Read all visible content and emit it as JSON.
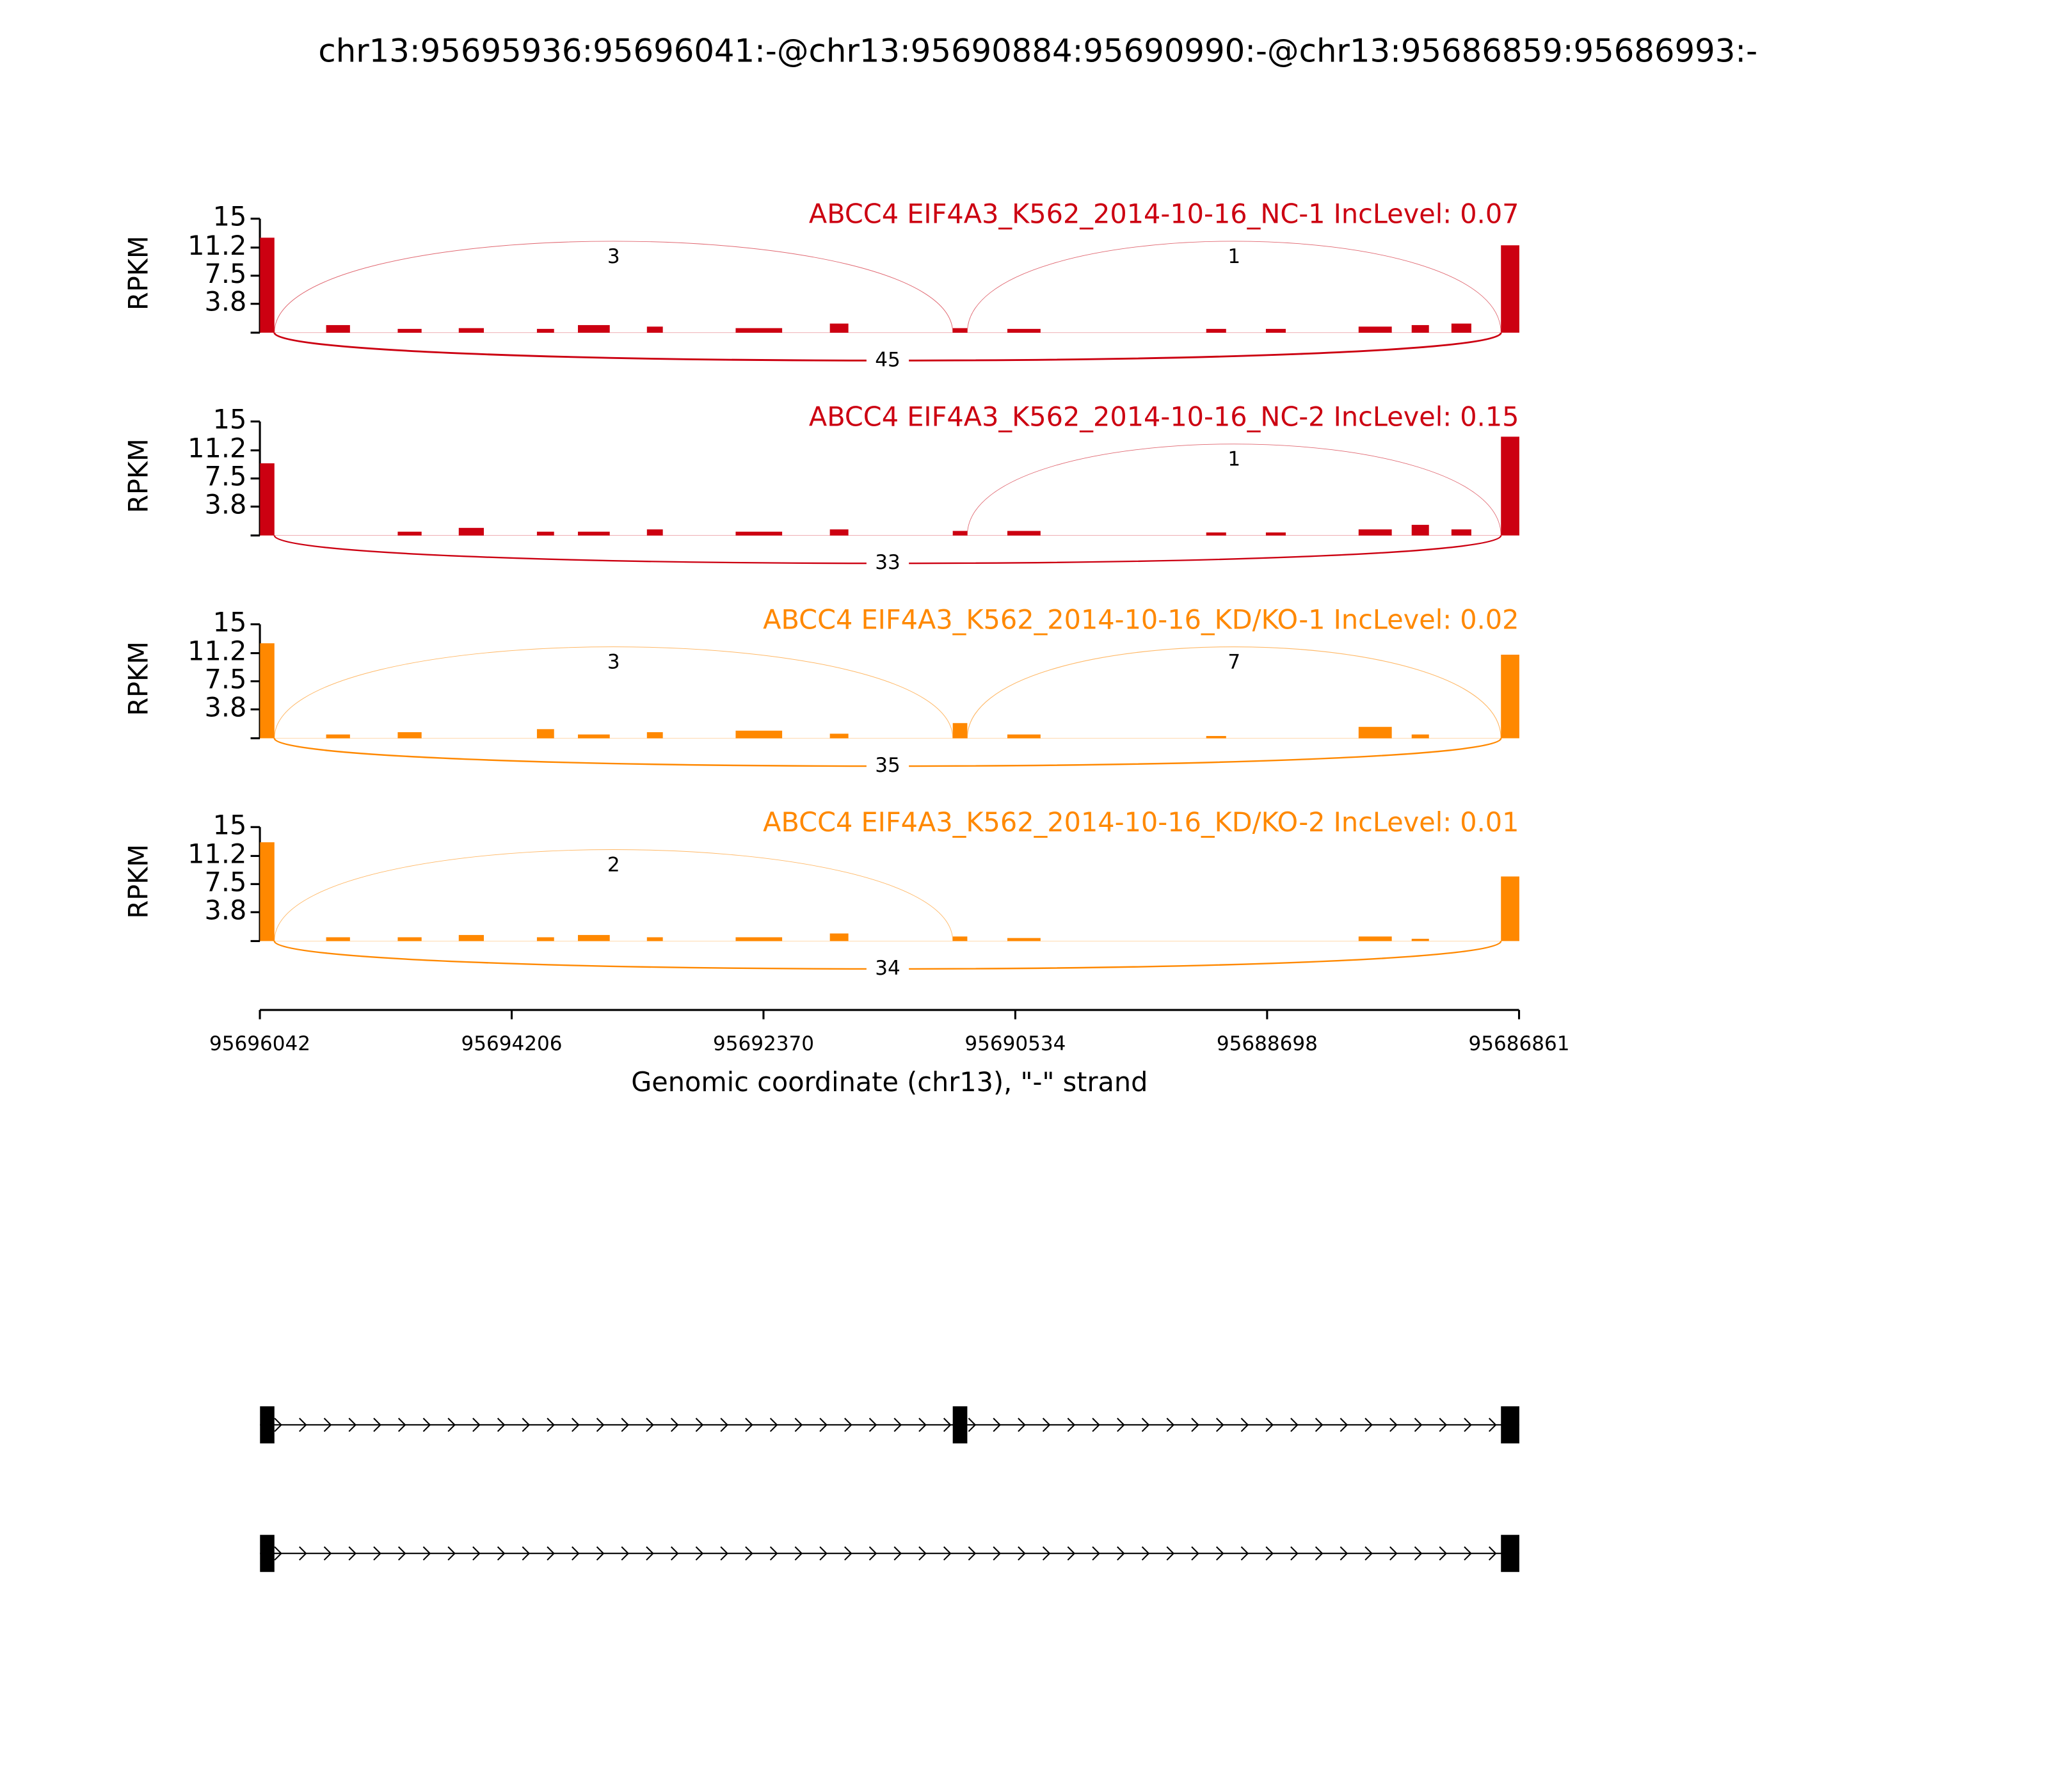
{
  "chart_data": {
    "type": "sashimi",
    "title": "chr13:95695936:95696041:-@chr13:95690884:95690990:-@chr13:95686859:95686993:-",
    "ylabel": "RPKM",
    "ylim": [
      0,
      15
    ],
    "yticks": [
      3.8,
      7.5,
      11.2,
      15
    ],
    "xlim": [
      95696042,
      95686861
    ],
    "xticks": [
      95696042,
      95694206,
      95692370,
      95690534,
      95688698,
      95686861
    ],
    "xlabel": "Genomic coordinate (chr13), \"-\" strand",
    "panels": [
      {
        "label": "ABCC4 EIF4A3_K562_2014-10-16_NC-1 IncLevel: 0.07",
        "color": "#cc0011",
        "coverage": {
          "starts": [
            95696041,
            95695559,
            95695037,
            95694592,
            95694022,
            95693723,
            95693220,
            95692573,
            95691886,
            95690990,
            95690592,
            95689142,
            95688707,
            95688031,
            95687644,
            95687354,
            95686993
          ],
          "ends": [
            95695936,
            95695385,
            95694863,
            95694409,
            95693897,
            95693491,
            95693104,
            95692234,
            95691751,
            95690884,
            95690350,
            95688997,
            95688562,
            95687789,
            95687518,
            95687209,
            95686859
          ],
          "values": [
            12.5,
            1.0,
            0.5,
            0.6,
            0.5,
            1.0,
            0.8,
            0.6,
            1.2,
            0.6,
            0.5,
            0.5,
            0.5,
            0.8,
            1.0,
            1.2,
            11.5
          ]
        },
        "junctions": [
          {
            "from": 95695936,
            "to": 95690990,
            "count": 3,
            "side": "above"
          },
          {
            "from": 95690884,
            "to": 95686993,
            "count": 1,
            "side": "above"
          },
          {
            "from": 95695936,
            "to": 95686993,
            "count": 45,
            "side": "below"
          }
        ]
      },
      {
        "label": "ABCC4 EIF4A3_K562_2014-10-16_NC-2 IncLevel: 0.15",
        "color": "#cc0011",
        "coverage": {
          "starts": [
            95696041,
            95695559,
            95695037,
            95694592,
            95694022,
            95693723,
            95693220,
            95692573,
            95691886,
            95690990,
            95690592,
            95689142,
            95688707,
            95688031,
            95687644,
            95687354,
            95686993
          ],
          "ends": [
            95695936,
            95695385,
            95694863,
            95694409,
            95693897,
            95693491,
            95693104,
            95692234,
            95691751,
            95690884,
            95690350,
            95688997,
            95688562,
            95687789,
            95687518,
            95687209,
            95686859
          ],
          "values": [
            9.5,
            0,
            0.5,
            1.0,
            0.5,
            0.5,
            0.8,
            0.5,
            0.8,
            0.6,
            0.6,
            0.4,
            0.4,
            0.8,
            1.4,
            0.8,
            13
          ]
        },
        "junctions": [
          {
            "from": 95690884,
            "to": 95686993,
            "count": 1,
            "side": "above"
          },
          {
            "from": 95695936,
            "to": 95686993,
            "count": 33,
            "side": "below"
          }
        ]
      },
      {
        "label": "ABCC4 EIF4A3_K562_2014-10-16_KD/KO-1 IncLevel: 0.02",
        "color": "#ff8800",
        "coverage": {
          "starts": [
            95696041,
            95695559,
            95695037,
            95694592,
            95694022,
            95693723,
            95693220,
            95692573,
            95691886,
            95690990,
            95690592,
            95689142,
            95688707,
            95688031,
            95687644,
            95687354,
            95686993
          ],
          "ends": [
            95695936,
            95695385,
            95694863,
            95694409,
            95693897,
            95693491,
            95693104,
            95692234,
            95691751,
            95690884,
            95690350,
            95688997,
            95688562,
            95687789,
            95687518,
            95687209,
            95686859
          ],
          "values": [
            12.5,
            0.5,
            0.8,
            0,
            1.2,
            0.5,
            0.8,
            1.0,
            0.6,
            2.0,
            0.5,
            0.3,
            0,
            1.5,
            0.5,
            0,
            11
          ]
        },
        "junctions": [
          {
            "from": 95695936,
            "to": 95690990,
            "count": 3,
            "side": "above"
          },
          {
            "from": 95690884,
            "to": 95686993,
            "count": 7,
            "side": "above"
          },
          {
            "from": 95695936,
            "to": 95686993,
            "count": 35,
            "side": "below"
          }
        ]
      },
      {
        "label": "ABCC4 EIF4A3_K562_2014-10-16_KD/KO-2 IncLevel: 0.01",
        "color": "#ff8800",
        "coverage": {
          "starts": [
            95696041,
            95695559,
            95695037,
            95694592,
            95694022,
            95693723,
            95693220,
            95692573,
            95691886,
            95690990,
            95690592,
            95689142,
            95688707,
            95688031,
            95687644,
            95687354,
            95686993
          ],
          "ends": [
            95695936,
            95695385,
            95694863,
            95694409,
            95693897,
            95693491,
            95693104,
            95692234,
            95691751,
            95690884,
            95690350,
            95688997,
            95688562,
            95687789,
            95687518,
            95687209,
            95686859
          ],
          "values": [
            13,
            0.5,
            0.5,
            0.8,
            0.5,
            0.8,
            0.5,
            0.5,
            1.0,
            0.6,
            0.4,
            0,
            0,
            0.6,
            0.3,
            0,
            8.5
          ]
        },
        "junctions": [
          {
            "from": 95695936,
            "to": 95690990,
            "count": 2,
            "side": "above"
          },
          {
            "from": 95695936,
            "to": 95686993,
            "count": 34,
            "side": "below"
          }
        ]
      }
    ],
    "transcripts": [
      {
        "exons": [
          [
            95695936,
            95696041
          ],
          [
            95690884,
            95690990
          ],
          [
            95686859,
            95686993
          ]
        ]
      },
      {
        "exons": [
          [
            95695936,
            95696041
          ],
          [
            95686859,
            95686993
          ]
        ]
      }
    ]
  }
}
